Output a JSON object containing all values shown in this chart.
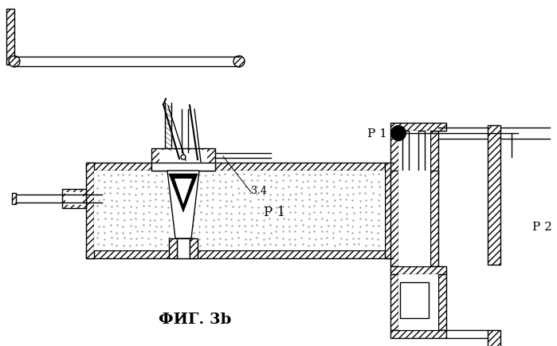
{
  "bg_color": "#ffffff",
  "lc": "#000000",
  "title": "ФИГ. 3b",
  "label_34": "3.4",
  "label_p1_box": "P 1",
  "label_p1_gauge": "P 1",
  "label_p2": "P 2",
  "title_fontsize": 14,
  "label_fontsize": 11,
  "lw": 1.0,
  "hatch": "////"
}
